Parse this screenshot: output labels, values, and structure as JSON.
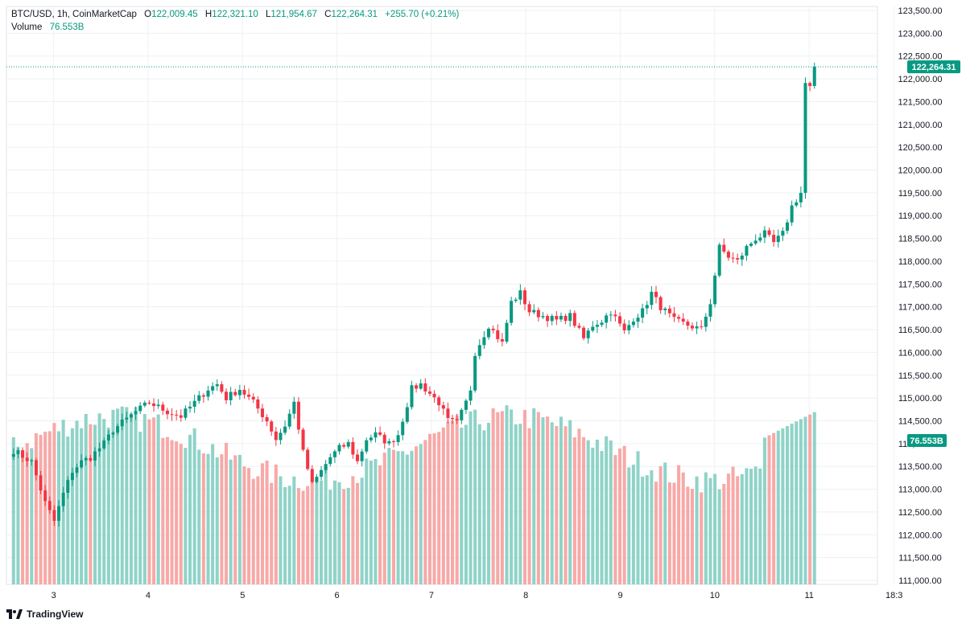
{
  "header": {
    "symbol": "BTC/USD, 1h, CoinMarketCap",
    "open_label": "O",
    "open": "122,009.45",
    "high_label": "H",
    "high": "122,321.10",
    "low_label": "L",
    "low": "121,954.67",
    "close_label": "C",
    "close": "122,264.31",
    "change": "+255.70 (+0.21%)",
    "volume_label": "Volume",
    "volume_value": "76.553B"
  },
  "logo_text": "TradingView",
  "colors": {
    "up": "#089981",
    "down": "#f23645",
    "up_vol": "#8fd3c8",
    "down_vol": "#f7a9a7",
    "grid": "#eef0f3"
  },
  "chart_data": {
    "type": "candlestick",
    "title": "BTC/USD, 1h, CoinMarketCap",
    "y_ticks": [
      "123,500.00",
      "123,000.00",
      "122,500.00",
      "122,000.00",
      "121,500.00",
      "121,000.00",
      "120,500.00",
      "120,000.00",
      "119,500.00",
      "119,000.00",
      "118,500.00",
      "118,000.00",
      "117,500.00",
      "117,000.00",
      "116,500.00",
      "116,000.00",
      "115,500.00",
      "115,000.00",
      "114,500.00",
      "114,000.00",
      "113,500.00",
      "113,000.00",
      "112,500.00",
      "112,000.00",
      "111,500.00",
      "111,000.00"
    ],
    "ylim": [
      111000,
      123500
    ],
    "x_ticks": [
      "3",
      "4",
      "5",
      "6",
      "7",
      "8",
      "9",
      "10",
      "11",
      "18:3"
    ],
    "x_tick_positions": [
      10,
      30,
      50,
      70,
      90,
      110,
      130,
      150,
      170,
      188
    ],
    "last_price_label": "122,264.31",
    "last_price": 122264.31,
    "volume_label": "76.553B",
    "series": {
      "bars": 178,
      "anchors": [
        [
          0,
          113850
        ],
        [
          4,
          113600
        ],
        [
          7,
          112700
        ],
        [
          9,
          112300
        ],
        [
          11,
          112900
        ],
        [
          13,
          113400
        ],
        [
          15,
          113600
        ],
        [
          17,
          113700
        ],
        [
          20,
          114000
        ],
        [
          22,
          114300
        ],
        [
          27,
          114700
        ],
        [
          30,
          114900
        ],
        [
          34,
          114700
        ],
        [
          37,
          114600
        ],
        [
          40,
          114900
        ],
        [
          43,
          115200
        ],
        [
          45,
          115300
        ],
        [
          47,
          115000
        ],
        [
          50,
          115200
        ],
        [
          53,
          114900
        ],
        [
          56,
          114500
        ],
        [
          58,
          114100
        ],
        [
          60,
          114400
        ],
        [
          62,
          114900
        ],
        [
          64,
          113800
        ],
        [
          66,
          113100
        ],
        [
          68,
          113400
        ],
        [
          70,
          113700
        ],
        [
          72,
          113900
        ],
        [
          74,
          114000
        ],
        [
          76,
          113600
        ],
        [
          78,
          114100
        ],
        [
          80,
          114200
        ],
        [
          83,
          114000
        ],
        [
          85,
          114200
        ],
        [
          88,
          115200
        ],
        [
          90,
          115300
        ],
        [
          92,
          115100
        ],
        [
          94,
          114900
        ],
        [
          96,
          114500
        ],
        [
          98,
          114450
        ],
        [
          100,
          114900
        ],
        [
          101,
          115200
        ],
        [
          102,
          116000
        ],
        [
          105,
          116600
        ],
        [
          108,
          116200
        ],
        [
          110,
          117100
        ],
        [
          112,
          117300
        ],
        [
          114,
          116900
        ],
        [
          117,
          116800
        ],
        [
          120,
          116700
        ],
        [
          123,
          116800
        ],
        [
          126,
          116300
        ],
        [
          128,
          116600
        ],
        [
          130,
          116700
        ],
        [
          132,
          116900
        ],
        [
          135,
          116450
        ],
        [
          137,
          116750
        ],
        [
          139,
          116900
        ],
        [
          141,
          117300
        ],
        [
          143,
          117000
        ],
        [
          146,
          116700
        ],
        [
          149,
          116600
        ],
        [
          152,
          116500
        ],
        [
          154,
          117100
        ],
        [
          156,
          118300
        ],
        [
          158,
          118100
        ],
        [
          160,
          118000
        ],
        [
          162,
          118300
        ],
        [
          164,
          118500
        ],
        [
          166,
          118600
        ],
        [
          168,
          118400
        ],
        [
          170,
          118600
        ],
        [
          172,
          119200
        ],
        [
          174,
          119500
        ],
        [
          175,
          121900
        ],
        [
          176,
          121800
        ],
        [
          177,
          122264
        ]
      ],
      "volume": {
        "unit": "relative",
        "range": [
          0.18,
          0.29
        ]
      }
    }
  }
}
